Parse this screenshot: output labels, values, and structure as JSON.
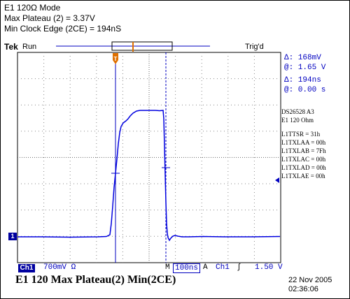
{
  "header": {
    "line1": "E1 120Ω Mode",
    "line2": "Max Plateau (2) = 3.37V",
    "line3": "Min Clock Edge (2CE) = 194nS"
  },
  "status": {
    "brand": "Tek",
    "run": "Run",
    "trig": "Trig'd"
  },
  "measurements": {
    "delta_v": "Δ:   168mV",
    "at_v": "@:   1.65 V",
    "delta_t": "Δ:    194ns",
    "at_t": "@:    0.00 s"
  },
  "registers": {
    "device": "DS26528  A3",
    "mode": "E1 120 Ohm",
    "lines": [
      "L1TTSR = 31h",
      "L1TXLAA = 00h",
      "L1TXLAB = 7Fh",
      "L1TXLAC = 00h",
      "L1TXLAD = 00h",
      "L1TXLAE = 00h"
    ]
  },
  "channel": {
    "marker": "1"
  },
  "bottom_bar": {
    "channel": "Ch1",
    "volts_div": "700mV Ω",
    "m_label": "M",
    "time_div": "100ns",
    "a_label": "A",
    "trig_channel": "Ch1",
    "trig_slope": "∫",
    "trig_level": "1.50 V"
  },
  "caption": "E1 120 Max Plateau(2)  Min(2CE)",
  "timestamp": {
    "date": "22 Nov 2005",
    "time": "02:36:06"
  },
  "colors": {
    "trace": "#0000e0",
    "cursor": "#0000c0",
    "trigger": "#e07000"
  }
}
